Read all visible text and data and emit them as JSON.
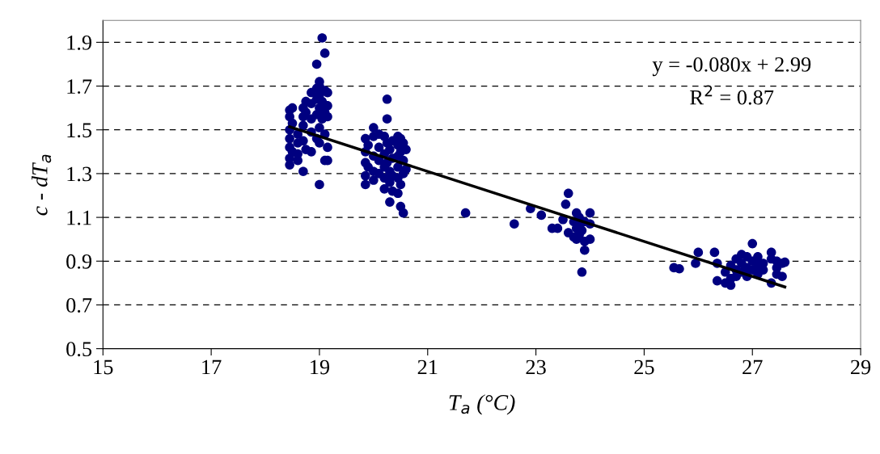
{
  "chart_data": {
    "type": "scatter",
    "xlabel": "T$_{a}$ (°C)",
    "ylabel": "c - dT$_{a}$",
    "xlim": [
      15,
      29
    ],
    "xticks": [
      15,
      17,
      19,
      21,
      23,
      25,
      27,
      29
    ],
    "ylim": [
      0.5,
      2.0
    ],
    "yticks": [
      0.5,
      0.7,
      0.9,
      1.1,
      1.3,
      1.5,
      1.7,
      1.9
    ],
    "grid": "y",
    "annotations": [
      "y = -0.080x + 2.99",
      "R$^{2}$ = 0.87"
    ],
    "series": [
      {
        "color": "#000080",
        "marker": "circle",
        "x": [
          18.45,
          18.45,
          18.45,
          18.45,
          18.45,
          18.45,
          18.45,
          18.5,
          18.5,
          18.5,
          18.6,
          18.6,
          18.6,
          18.6,
          18.7,
          18.7,
          18.7,
          18.7,
          18.7,
          18.75,
          18.75,
          18.75,
          18.85,
          18.85,
          18.85,
          18.85,
          18.85,
          18.95,
          18.95,
          18.95,
          18.95,
          18.95,
          19.0,
          19.0,
          19.0,
          19.0,
          19.0,
          19.0,
          19.0,
          19.05,
          19.05,
          19.05,
          19.1,
          19.1,
          19.1,
          19.1,
          19.1,
          19.15,
          19.15,
          19.15,
          19.15,
          19.15,
          19.85,
          19.85,
          19.85,
          19.85,
          19.85,
          19.9,
          19.9,
          20.0,
          20.0,
          20.0,
          20.0,
          20.0,
          20.1,
          20.1,
          20.1,
          20.1,
          20.2,
          20.2,
          20.2,
          20.2,
          20.2,
          20.25,
          20.25,
          20.25,
          20.25,
          20.3,
          20.3,
          20.3,
          20.3,
          20.35,
          20.35,
          20.35,
          20.35,
          20.45,
          20.45,
          20.45,
          20.45,
          20.45,
          20.45,
          20.5,
          20.5,
          20.5,
          20.5,
          20.55,
          20.55,
          20.55,
          20.55,
          20.6,
          20.6,
          21.7,
          22.6,
          22.9,
          23.1,
          23.3,
          23.4,
          23.5,
          23.55,
          23.6,
          23.6,
          23.7,
          23.7,
          23.75,
          23.75,
          23.75,
          23.8,
          23.8,
          23.8,
          23.85,
          23.85,
          23.9,
          23.9,
          23.9,
          24.0,
          24.0,
          24.0,
          25.55,
          25.65,
          25.95,
          26.0,
          26.3,
          26.35,
          26.35,
          26.5,
          26.5,
          26.6,
          26.6,
          26.6,
          26.7,
          26.7,
          26.7,
          26.8,
          26.8,
          26.8,
          26.9,
          26.9,
          26.9,
          27.0,
          27.0,
          27.0,
          27.1,
          27.1,
          27.1,
          27.2,
          27.2,
          27.35,
          27.35,
          27.35,
          27.45,
          27.45,
          27.45,
          27.55,
          27.55,
          27.6
        ],
        "values": [
          1.59,
          1.56,
          1.5,
          1.46,
          1.42,
          1.37,
          1.34,
          1.6,
          1.53,
          1.4,
          1.48,
          1.44,
          1.39,
          1.36,
          1.56,
          1.52,
          1.45,
          1.31,
          1.6,
          1.63,
          1.58,
          1.41,
          1.67,
          1.62,
          1.55,
          1.49,
          1.4,
          1.8,
          1.69,
          1.64,
          1.57,
          1.46,
          1.72,
          1.7,
          1.66,
          1.6,
          1.51,
          1.44,
          1.25,
          1.92,
          1.63,
          1.55,
          1.85,
          1.68,
          1.58,
          1.48,
          1.36,
          1.67,
          1.61,
          1.56,
          1.42,
          1.36,
          1.46,
          1.4,
          1.35,
          1.29,
          1.25,
          1.43,
          1.33,
          1.51,
          1.47,
          1.38,
          1.31,
          1.27,
          1.48,
          1.42,
          1.36,
          1.3,
          1.47,
          1.39,
          1.33,
          1.28,
          1.23,
          1.64,
          1.55,
          1.44,
          1.35,
          1.41,
          1.31,
          1.26,
          1.17,
          1.45,
          1.37,
          1.29,
          1.22,
          1.47,
          1.43,
          1.38,
          1.33,
          1.28,
          1.21,
          1.46,
          1.4,
          1.25,
          1.15,
          1.44,
          1.36,
          1.3,
          1.12,
          1.41,
          1.32,
          1.12,
          1.07,
          1.14,
          1.11,
          1.05,
          1.05,
          1.09,
          1.16,
          1.21,
          1.03,
          1.08,
          1.01,
          1.12,
          1.05,
          1.0,
          1.1,
          1.06,
          1.02,
          0.85,
          1.04,
          0.95,
          1.08,
          0.99,
          1.12,
          1.07,
          1.0,
          0.87,
          0.865,
          0.89,
          0.94,
          0.94,
          0.81,
          0.89,
          0.85,
          0.8,
          0.88,
          0.82,
          0.79,
          0.91,
          0.86,
          0.83,
          0.93,
          0.89,
          0.85,
          0.92,
          0.87,
          0.83,
          0.98,
          0.9,
          0.86,
          0.92,
          0.88,
          0.84,
          0.89,
          0.86,
          0.94,
          0.91,
          0.8,
          0.9,
          0.87,
          0.84,
          0.89,
          0.83,
          0.895
        ]
      },
      {
        "type": "line",
        "color": "#000000",
        "x": [
          18.45,
          27.6
        ],
        "values": [
          1.514,
          0.782
        ]
      }
    ]
  }
}
